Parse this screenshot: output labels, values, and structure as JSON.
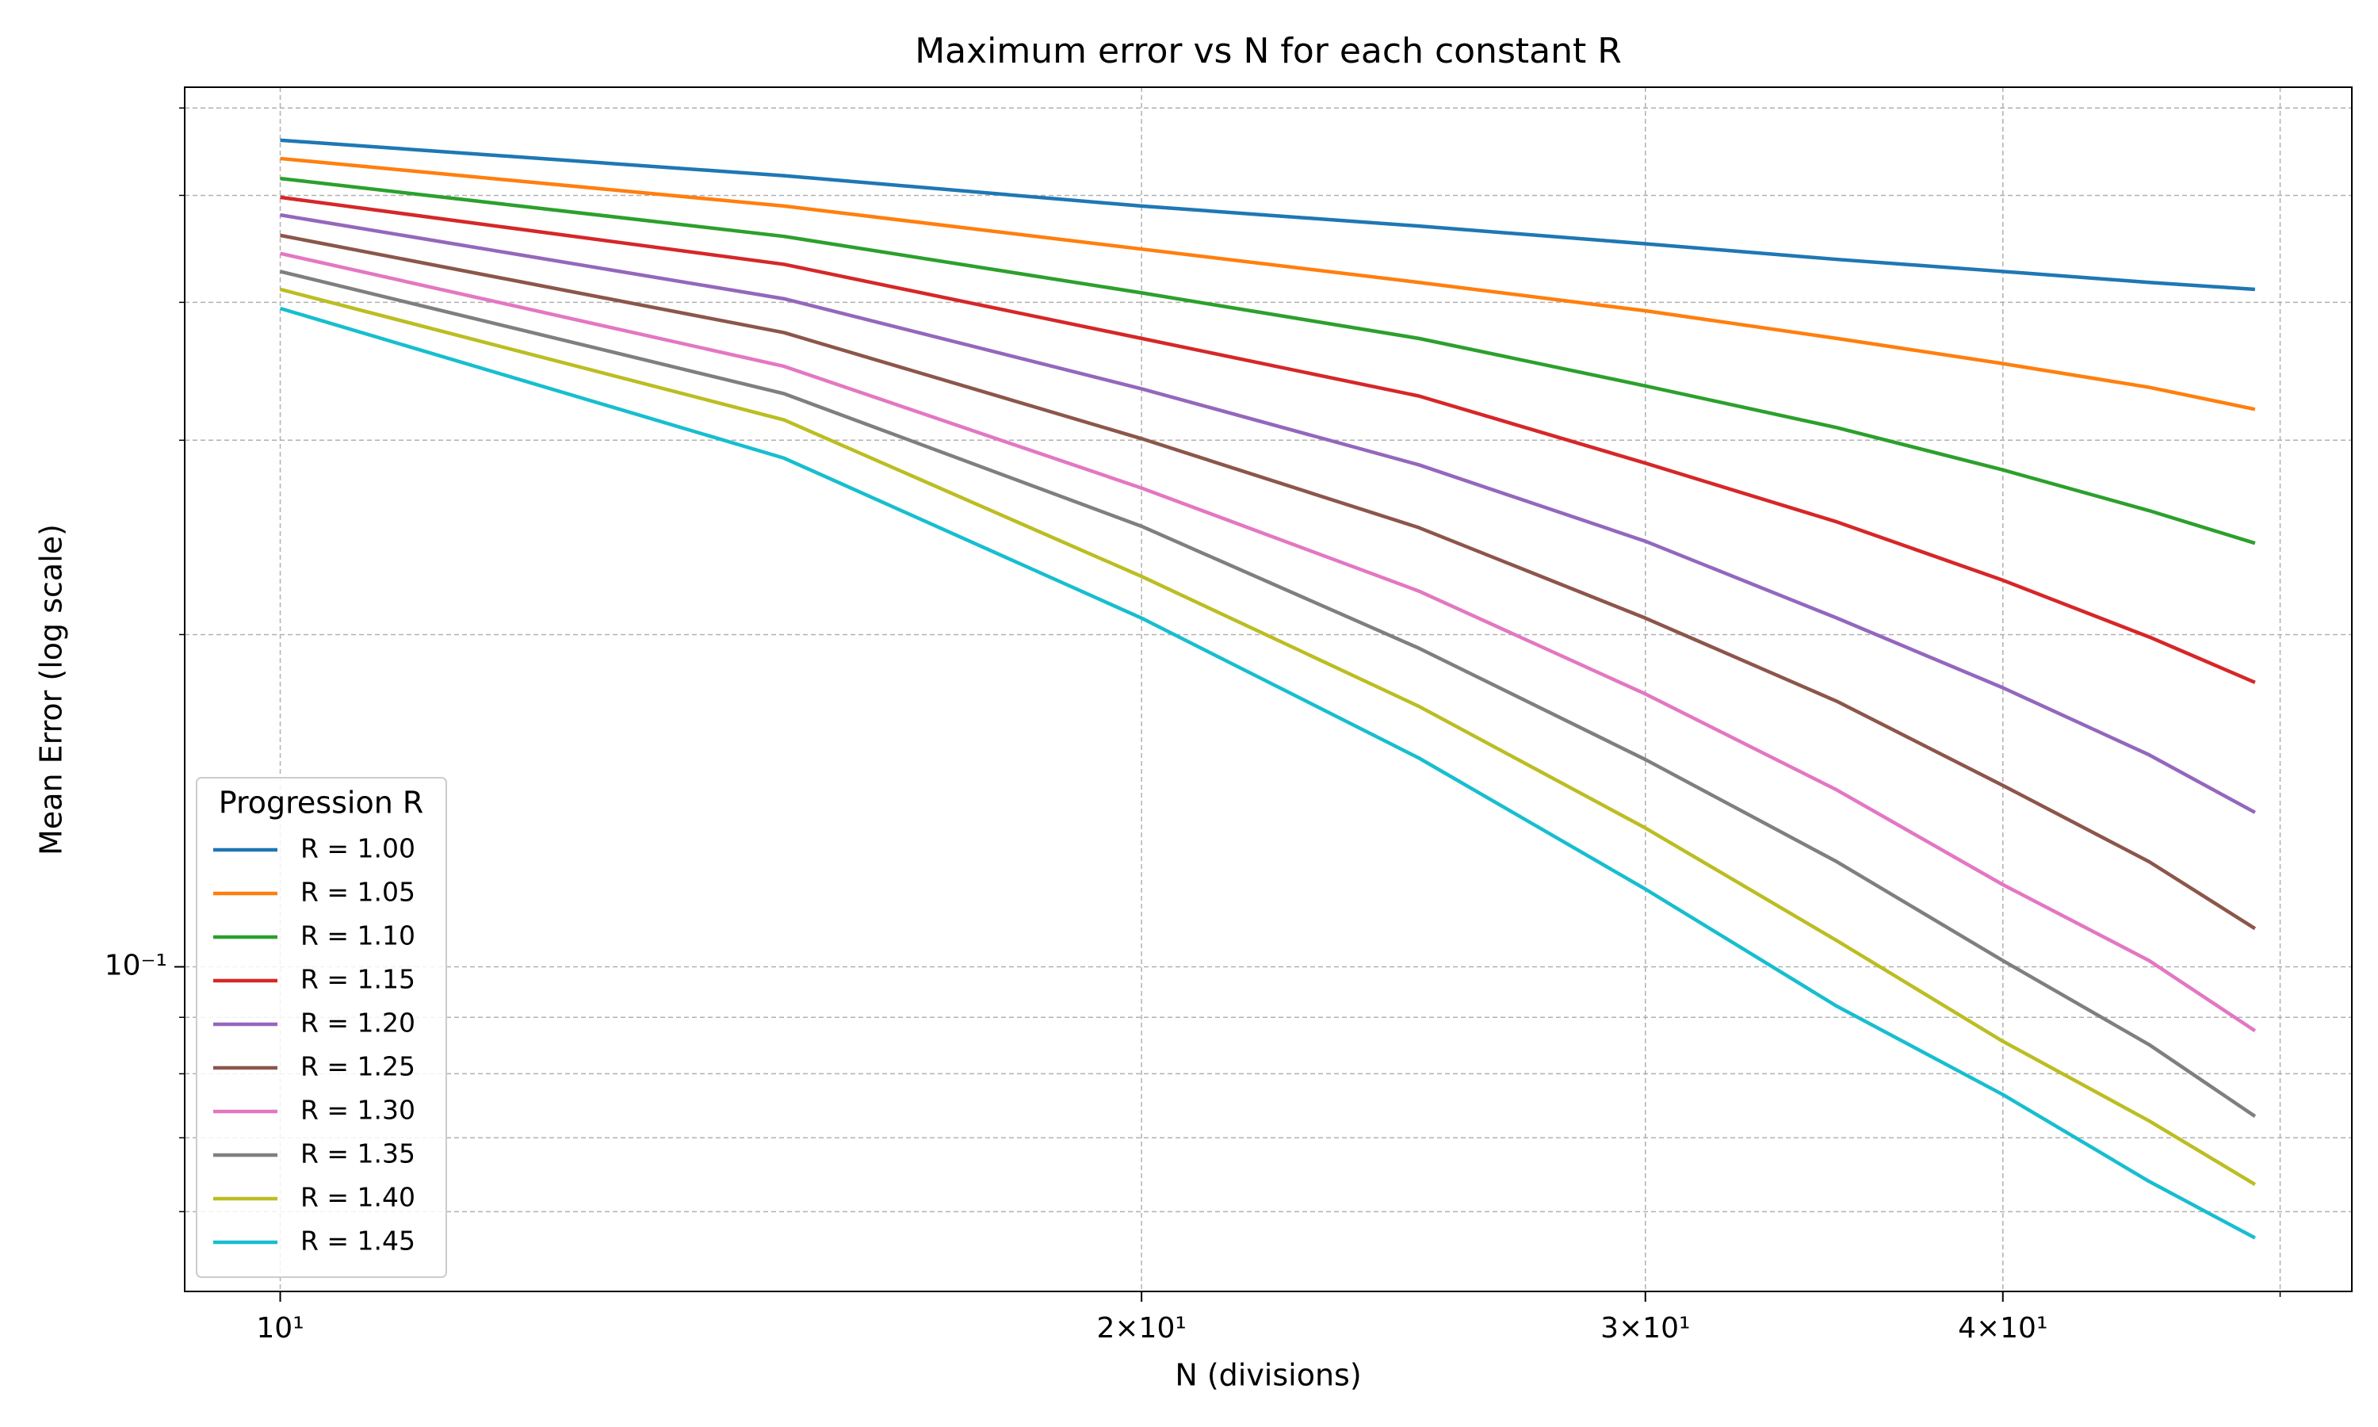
{
  "chart_data": {
    "type": "line",
    "title": "Maximum error vs N for each constant R",
    "xlabel": "N (divisions)",
    "ylabel": "Mean Error (log scale)",
    "xscale": "log",
    "yscale": "log",
    "grid": true,
    "legend_title": "Progression R",
    "legend_position": "lower left",
    "x": [
      10,
      15,
      20,
      25,
      30,
      35,
      40,
      45,
      49
    ],
    "xlim": [
      9.26,
      52.97
    ],
    "ylim": [
      0.0508,
      0.6266
    ],
    "xticks": [
      {
        "value": 10,
        "label": "10¹"
      },
      {
        "value": 20,
        "label": "2×10¹"
      },
      {
        "value": 30,
        "label": "3×10¹"
      },
      {
        "value": 40,
        "label": "4×10¹"
      }
    ],
    "xminorticks": [
      50
    ],
    "yticks": [
      {
        "value": 0.1,
        "label": "10⁻¹"
      }
    ],
    "yminorticks": [
      0.06,
      0.07,
      0.08,
      0.09,
      0.2,
      0.3,
      0.4,
      0.5,
      0.6
    ],
    "series": [
      {
        "name": "R = 1.00",
        "color": "#1f77b4",
        "values": [
          0.561,
          0.521,
          0.489,
          0.469,
          0.452,
          0.4375,
          0.4266,
          0.417,
          0.411
        ]
      },
      {
        "name": "R = 1.05",
        "color": "#ff7f0e",
        "values": [
          0.54,
          0.489,
          0.447,
          0.417,
          0.393,
          0.371,
          0.352,
          0.335,
          0.32
        ]
      },
      {
        "name": "R = 1.10",
        "color": "#2ca02c",
        "values": [
          0.518,
          0.459,
          0.408,
          0.371,
          0.336,
          0.308,
          0.282,
          0.259,
          0.242
        ]
      },
      {
        "name": "R = 1.15",
        "color": "#d62728",
        "values": [
          0.498,
          0.433,
          0.371,
          0.329,
          0.286,
          0.253,
          0.224,
          0.199,
          0.181
        ]
      },
      {
        "name": "R = 1.20",
        "color": "#9467bd",
        "values": [
          0.48,
          0.403,
          0.334,
          0.285,
          0.243,
          0.207,
          0.179,
          0.1556,
          0.138
        ]
      },
      {
        "name": "R = 1.25",
        "color": "#8c564b",
        "values": [
          0.46,
          0.3755,
          0.301,
          0.25,
          0.207,
          0.174,
          0.146,
          0.1245,
          0.1083
        ]
      },
      {
        "name": "R = 1.30",
        "color": "#e377c2",
        "values": [
          0.443,
          0.35,
          0.2715,
          0.219,
          0.1767,
          0.1446,
          0.1187,
          0.1013,
          0.0875
        ]
      },
      {
        "name": "R = 1.35",
        "color": "#7f7f7f",
        "values": [
          0.4266,
          0.3306,
          0.2507,
          0.1944,
          0.1541,
          0.1245,
          0.1013,
          0.085,
          0.0732
        ]
      },
      {
        "name": "R = 1.40",
        "color": "#bcbd22",
        "values": [
          0.411,
          0.313,
          0.2258,
          0.1722,
          0.1336,
          0.1056,
          0.0856,
          0.0725,
          0.0635
        ]
      },
      {
        "name": "R = 1.45",
        "color": "#17becf",
        "values": [
          0.395,
          0.289,
          0.207,
          0.1546,
          0.1176,
          0.0921,
          0.0766,
          0.0639,
          0.0568
        ]
      }
    ]
  }
}
